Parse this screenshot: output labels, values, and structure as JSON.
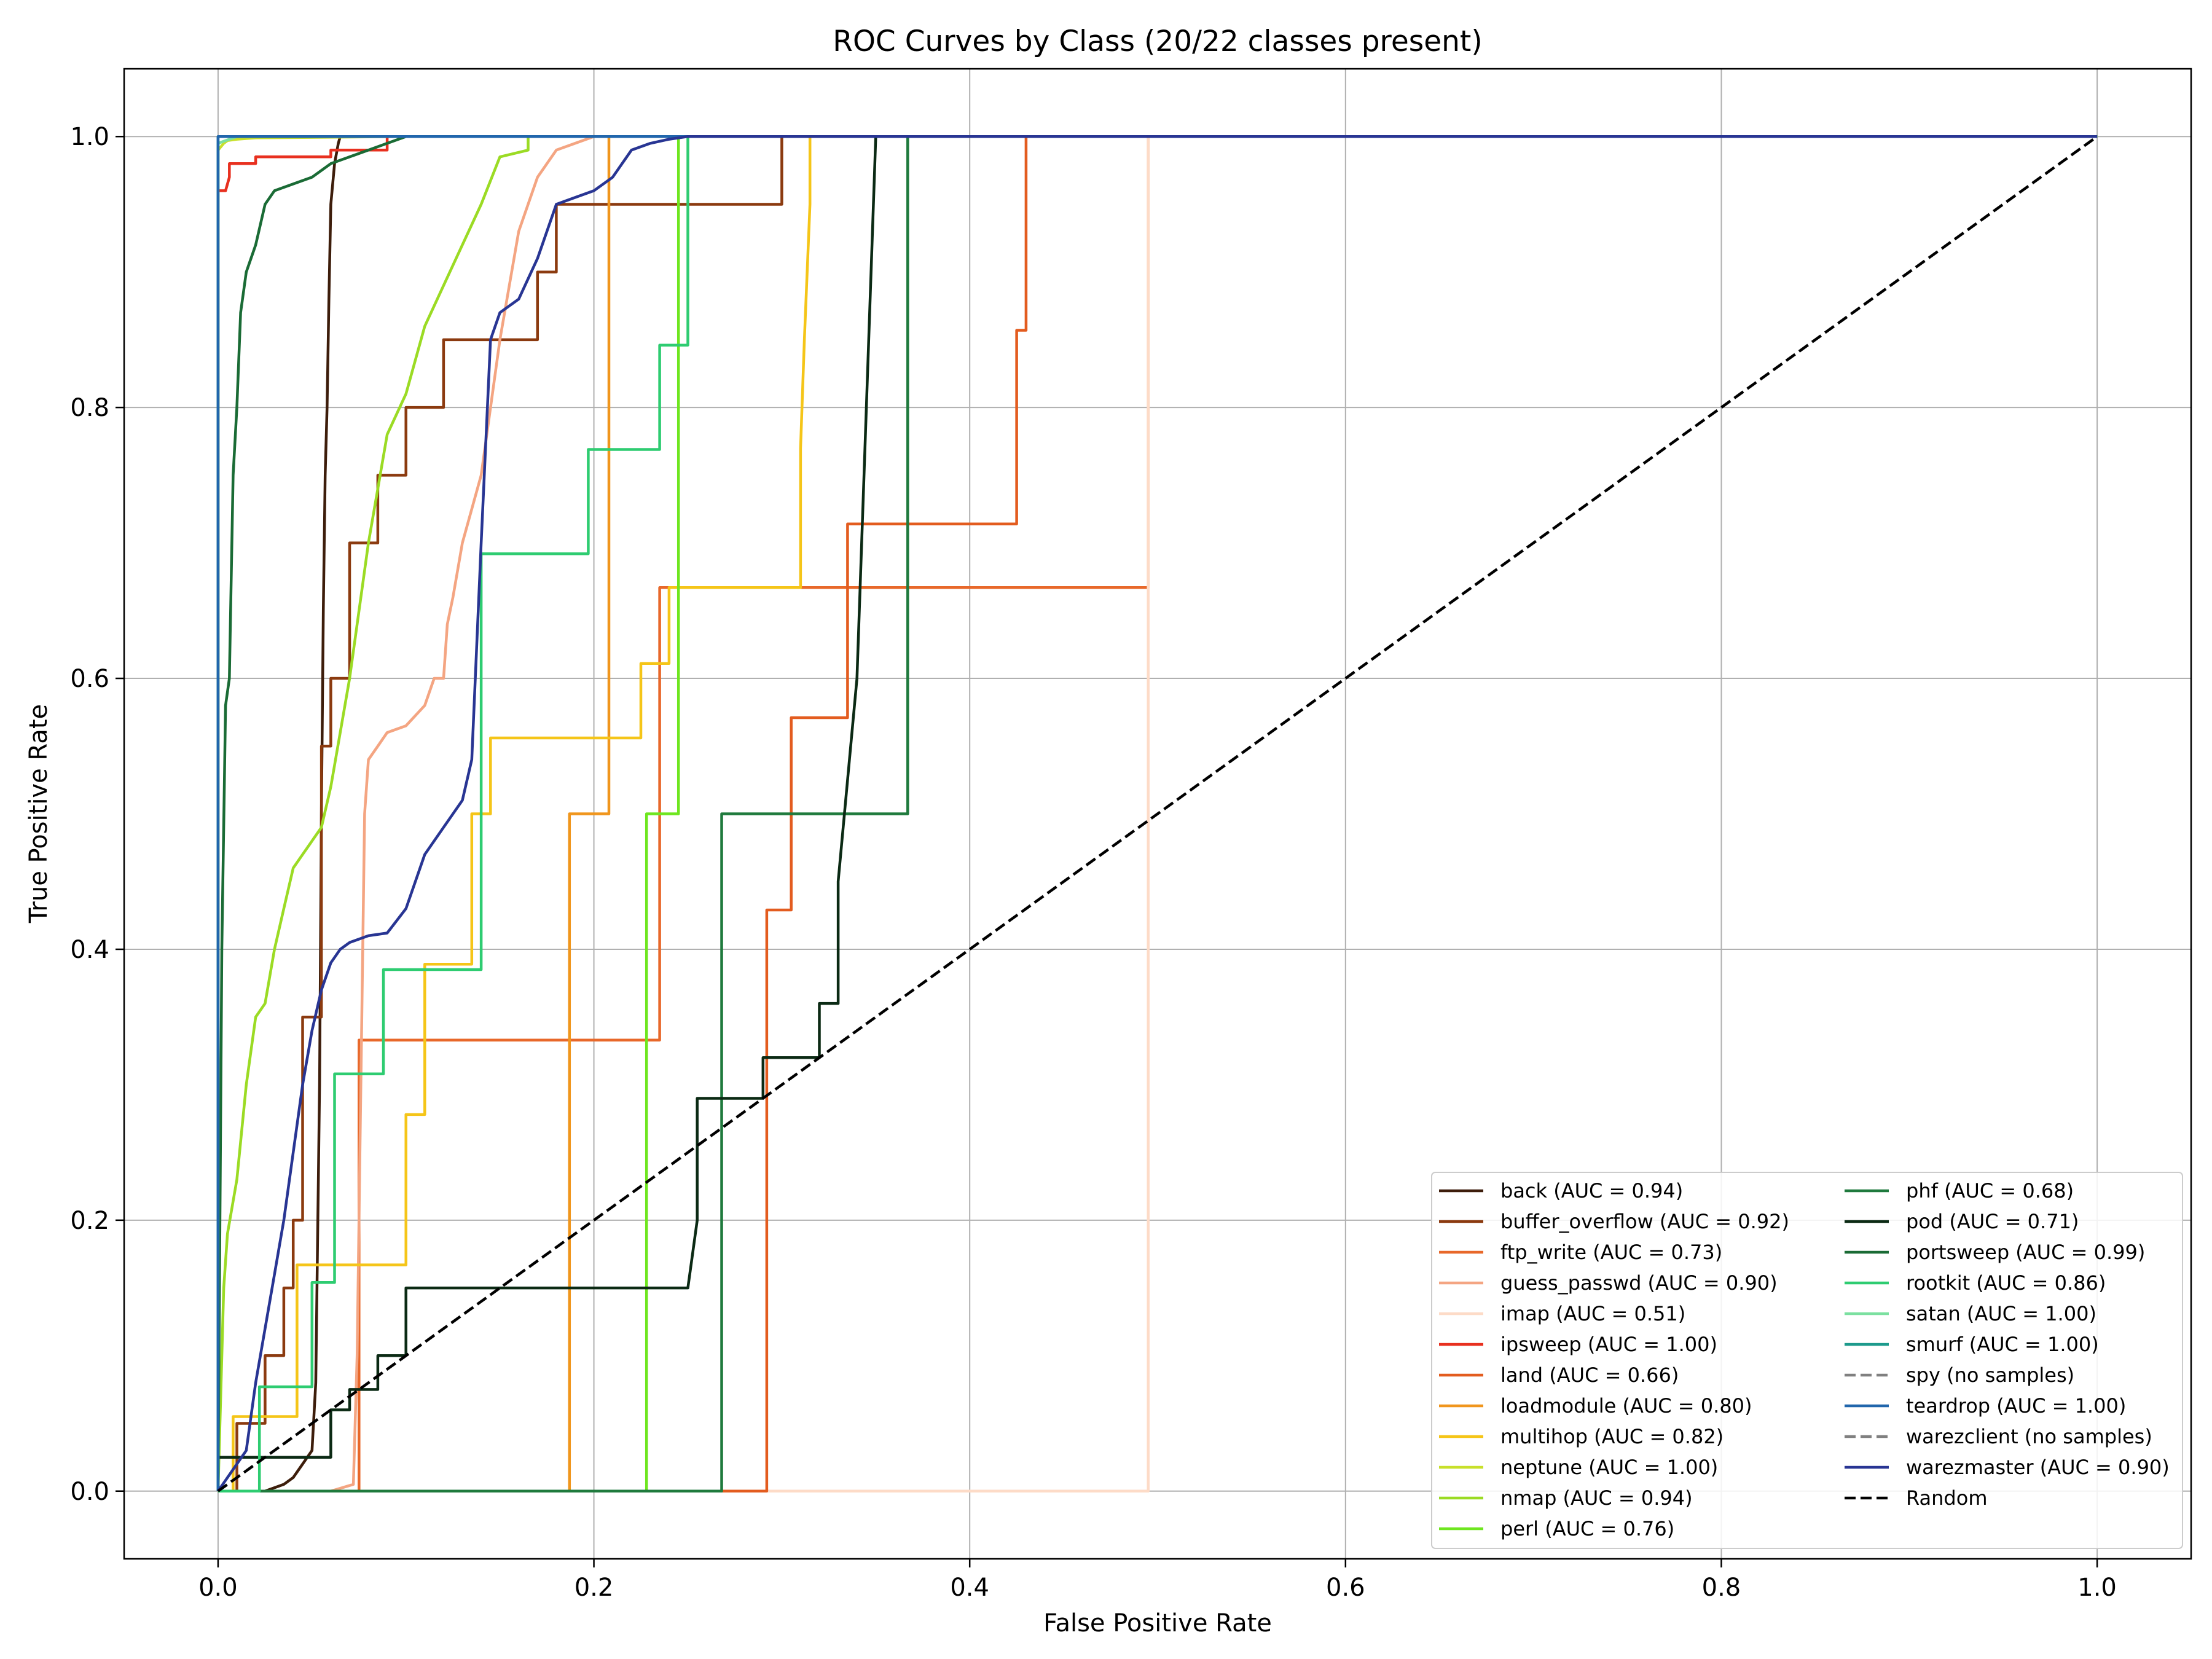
{
  "chart_data": {
    "type": "line",
    "title": "ROC Curves by Class (20/22 classes present)",
    "xlabel": "False Positive Rate",
    "ylabel": "True Positive Rate",
    "xlim": [
      -0.05,
      1.05
    ],
    "ylim": [
      -0.05,
      1.05
    ],
    "xticks": [
      0.0,
      0.2,
      0.4,
      0.6,
      0.8,
      1.0
    ],
    "yticks": [
      0.0,
      0.2,
      0.4,
      0.6,
      0.8,
      1.0
    ],
    "xtick_labels": [
      "0.0",
      "0.2",
      "0.4",
      "0.6",
      "0.8",
      "1.0"
    ],
    "ytick_labels": [
      "0.0",
      "0.2",
      "0.4",
      "0.6",
      "0.8",
      "1.0"
    ],
    "grid": true,
    "legend_position": "lower-right",
    "legend_columns": 2,
    "series": [
      {
        "name": "back",
        "label": "back (AUC = 0.94)",
        "color": "#3d1d0b",
        "dashed": false,
        "x": [
          0,
          0.025,
          0.035,
          0.04,
          0.045,
          0.05,
          0.052,
          0.054,
          0.055,
          0.056,
          0.057,
          0.058,
          0.059,
          0.06,
          0.062,
          0.064,
          0.065,
          1.0
        ],
        "y": [
          0,
          0,
          0.005,
          0.01,
          0.02,
          0.03,
          0.08,
          0.3,
          0.5,
          0.65,
          0.75,
          0.8,
          0.88,
          0.95,
          0.98,
          0.995,
          1.0,
          1.0
        ]
      },
      {
        "name": "buffer_overflow",
        "label": "buffer_overflow (AUC = 0.92)",
        "color": "#8b3a0f",
        "dashed": false,
        "x": [
          0,
          0.01,
          0.01,
          0.025,
          0.025,
          0.035,
          0.035,
          0.04,
          0.04,
          0.045,
          0.045,
          0.055,
          0.055,
          0.06,
          0.06,
          0.07,
          0.07,
          0.085,
          0.085,
          0.1,
          0.1,
          0.12,
          0.12,
          0.17,
          0.17,
          0.18,
          0.18,
          0.3,
          0.3,
          0.31,
          0.31,
          1.0
        ],
        "y": [
          0,
          0,
          0.05,
          0.05,
          0.1,
          0.1,
          0.15,
          0.15,
          0.2,
          0.2,
          0.35,
          0.35,
          0.55,
          0.55,
          0.6,
          0.6,
          0.7,
          0.7,
          0.75,
          0.75,
          0.8,
          0.8,
          0.85,
          0.85,
          0.9,
          0.9,
          0.95,
          0.95,
          1.0,
          1.0,
          1.0,
          1.0
        ]
      },
      {
        "name": "ftp_write",
        "label": "ftp_write (AUC = 0.73)",
        "color": "#e8682a",
        "dashed": false,
        "x": [
          0,
          0.075,
          0.075,
          0.235,
          0.235,
          0.495,
          0.495,
          1.0
        ],
        "y": [
          0,
          0,
          0.333,
          0.333,
          0.667,
          0.667,
          1.0,
          1.0
        ]
      },
      {
        "name": "guess_passwd",
        "label": "guess_passwd (AUC = 0.90)",
        "color": "#f4a582",
        "dashed": false,
        "x": [
          0,
          0.06,
          0.072,
          0.074,
          0.076,
          0.078,
          0.08,
          0.085,
          0.09,
          0.1,
          0.11,
          0.115,
          0.12,
          0.122,
          0.125,
          0.13,
          0.14,
          0.15,
          0.16,
          0.17,
          0.18,
          0.2,
          0.23,
          1.0
        ],
        "y": [
          0,
          0,
          0.005,
          0.1,
          0.3,
          0.5,
          0.54,
          0.55,
          0.56,
          0.565,
          0.58,
          0.6,
          0.6,
          0.64,
          0.66,
          0.7,
          0.75,
          0.85,
          0.93,
          0.97,
          0.99,
          1.0,
          1.0,
          1.0
        ]
      },
      {
        "name": "imap",
        "label": "imap (AUC = 0.51)",
        "color": "#fddbc7",
        "dashed": false,
        "x": [
          0,
          0.495,
          0.495,
          1.0
        ],
        "y": [
          0,
          0,
          1.0,
          1.0
        ]
      },
      {
        "name": "ipsweep",
        "label": "ipsweep (AUC = 1.00)",
        "color": "#e8301f",
        "dashed": false,
        "x": [
          0,
          0,
          0.004,
          0.006,
          0.006,
          0.02,
          0.02,
          0.06,
          0.06,
          0.09,
          0.09,
          1.0
        ],
        "y": [
          0,
          0.96,
          0.96,
          0.97,
          0.98,
          0.98,
          0.985,
          0.985,
          0.99,
          0.99,
          1.0,
          1.0
        ]
      },
      {
        "name": "land",
        "label": "land (AUC = 0.66)",
        "color": "#e35c1f",
        "dashed": false,
        "x": [
          0,
          0.292,
          0.292,
          0.305,
          0.305,
          0.335,
          0.335,
          0.355,
          0.355,
          0.425,
          0.425,
          0.43,
          0.43,
          1.0
        ],
        "y": [
          0,
          0,
          0.429,
          0.429,
          0.571,
          0.571,
          0.714,
          0.714,
          0.714,
          0.714,
          0.857,
          0.857,
          1.0,
          1.0
        ]
      },
      {
        "name": "loadmodule",
        "label": "loadmodule (AUC = 0.80)",
        "color": "#f0961d",
        "dashed": false,
        "x": [
          0,
          0.187,
          0.187,
          0.208,
          0.208,
          1.0
        ],
        "y": [
          0,
          0,
          0.5,
          0.5,
          1.0,
          1.0
        ]
      },
      {
        "name": "multihop",
        "label": "multihop (AUC = 0.82)",
        "color": "#f5c518",
        "dashed": false,
        "x": [
          0,
          0.008,
          0.008,
          0.042,
          0.042,
          0.1,
          0.1,
          0.11,
          0.11,
          0.135,
          0.135,
          0.145,
          0.145,
          0.225,
          0.225,
          0.24,
          0.24,
          0.31,
          0.31,
          0.312,
          0.315,
          0.315,
          1.0
        ],
        "y": [
          0,
          0,
          0.055,
          0.055,
          0.167,
          0.167,
          0.278,
          0.278,
          0.389,
          0.389,
          0.5,
          0.5,
          0.556,
          0.556,
          0.611,
          0.611,
          0.667,
          0.667,
          0.77,
          0.85,
          0.95,
          1.0,
          1.0
        ]
      },
      {
        "name": "neptune",
        "label": "neptune (AUC = 1.00)",
        "color": "#c8e02a",
        "dashed": false,
        "x": [
          0,
          0,
          0.003,
          0.005,
          0.01,
          0.02,
          0.1,
          1.0
        ],
        "y": [
          0,
          0.99,
          0.995,
          0.997,
          0.998,
          0.999,
          1.0,
          1.0
        ]
      },
      {
        "name": "nmap",
        "label": "nmap (AUC = 0.94)",
        "color": "#9bdb24",
        "dashed": false,
        "x": [
          0,
          0.003,
          0.005,
          0.01,
          0.015,
          0.02,
          0.025,
          0.03,
          0.035,
          0.04,
          0.045,
          0.05,
          0.055,
          0.06,
          0.07,
          0.075,
          0.08,
          0.085,
          0.09,
          0.1,
          0.11,
          0.12,
          0.13,
          0.14,
          0.15,
          0.165,
          0.165,
          1.0
        ],
        "y": [
          0,
          0.15,
          0.19,
          0.23,
          0.3,
          0.35,
          0.36,
          0.4,
          0.43,
          0.46,
          0.47,
          0.48,
          0.49,
          0.52,
          0.6,
          0.65,
          0.7,
          0.74,
          0.78,
          0.81,
          0.86,
          0.89,
          0.92,
          0.95,
          0.985,
          0.99,
          1.0,
          1.0
        ]
      },
      {
        "name": "perl",
        "label": "perl (AUC = 0.76)",
        "color": "#6ee61f",
        "dashed": false,
        "x": [
          0,
          0.228,
          0.228,
          0.245,
          0.245,
          1.0
        ],
        "y": [
          0,
          0,
          0.5,
          0.5,
          1.0,
          1.0
        ]
      },
      {
        "name": "phf",
        "label": "phf (AUC = 0.68)",
        "color": "#1f7a3d",
        "dashed": false,
        "x": [
          0,
          0.268,
          0.268,
          0.367,
          0.367,
          1.0
        ],
        "y": [
          0,
          0,
          0.5,
          0.5,
          1.0,
          1.0
        ]
      },
      {
        "name": "pod",
        "label": "pod (AUC = 0.71)",
        "color": "#0b2a14",
        "dashed": false,
        "x": [
          0,
          0,
          0.06,
          0.06,
          0.07,
          0.07,
          0.085,
          0.085,
          0.1,
          0.1,
          0.25,
          0.255,
          0.255,
          0.29,
          0.29,
          0.32,
          0.32,
          0.33,
          0.33,
          0.34,
          0.35,
          1.0
        ],
        "y": [
          0,
          0.025,
          0.025,
          0.06,
          0.06,
          0.075,
          0.075,
          0.1,
          0.1,
          0.15,
          0.15,
          0.2,
          0.29,
          0.29,
          0.32,
          0.32,
          0.36,
          0.36,
          0.45,
          0.6,
          1.0,
          1.0
        ]
      },
      {
        "name": "portsweep",
        "label": "portsweep (AUC = 0.99)",
        "color": "#1a6b35",
        "dashed": false,
        "x": [
          0,
          0.002,
          0.004,
          0.006,
          0.008,
          0.01,
          0.012,
          0.015,
          0.02,
          0.025,
          0.03,
          0.04,
          0.05,
          0.06,
          0.07,
          0.08,
          0.1,
          1.0
        ],
        "y": [
          0,
          0.4,
          0.58,
          0.6,
          0.75,
          0.8,
          0.87,
          0.9,
          0.92,
          0.95,
          0.96,
          0.965,
          0.97,
          0.98,
          0.985,
          0.99,
          1.0,
          1.0
        ]
      },
      {
        "name": "rootkit",
        "label": "rootkit (AUC = 0.86)",
        "color": "#2ecc71",
        "dashed": false,
        "x": [
          0,
          0.022,
          0.022,
          0.05,
          0.05,
          0.062,
          0.062,
          0.088,
          0.088,
          0.14,
          0.14,
          0.197,
          0.197,
          0.235,
          0.235,
          0.25,
          0.25,
          1.0
        ],
        "y": [
          0,
          0,
          0.077,
          0.077,
          0.154,
          0.154,
          0.308,
          0.308,
          0.385,
          0.385,
          0.692,
          0.692,
          0.769,
          0.769,
          0.846,
          0.846,
          1.0,
          1.0
        ]
      },
      {
        "name": "satan",
        "label": "satan (AUC = 1.00)",
        "color": "#7be0a0",
        "dashed": false,
        "x": [
          0,
          0,
          0.01,
          1.0
        ],
        "y": [
          0,
          0.995,
          1.0,
          1.0
        ]
      },
      {
        "name": "smurf",
        "label": "smurf (AUC = 1.00)",
        "color": "#1d9a8c",
        "dashed": false,
        "x": [
          0,
          0,
          1.0
        ],
        "y": [
          0,
          1.0,
          1.0
        ]
      },
      {
        "name": "spy",
        "label": "spy (no samples)",
        "color": "#808080",
        "dashed": true,
        "x": [],
        "y": []
      },
      {
        "name": "teardrop",
        "label": "teardrop (AUC = 1.00)",
        "color": "#2166ac",
        "dashed": false,
        "x": [
          0,
          0,
          1.0
        ],
        "y": [
          0,
          1.0,
          1.0
        ]
      },
      {
        "name": "warezclient",
        "label": "warezclient (no samples)",
        "color": "#808080",
        "dashed": true,
        "x": [],
        "y": []
      },
      {
        "name": "warezmaster",
        "label": "warezmaster (AUC = 0.90)",
        "color": "#283593",
        "dashed": false,
        "x": [
          0,
          0.015,
          0.02,
          0.025,
          0.03,
          0.035,
          0.04,
          0.045,
          0.05,
          0.055,
          0.06,
          0.065,
          0.07,
          0.08,
          0.09,
          0.1,
          0.11,
          0.12,
          0.13,
          0.135,
          0.14,
          0.145,
          0.15,
          0.16,
          0.17,
          0.18,
          0.19,
          0.2,
          0.21,
          0.22,
          0.23,
          0.24,
          0.25,
          0.26,
          1.0
        ],
        "y": [
          0,
          0.03,
          0.08,
          0.12,
          0.16,
          0.2,
          0.25,
          0.3,
          0.34,
          0.37,
          0.39,
          0.4,
          0.405,
          0.41,
          0.412,
          0.43,
          0.47,
          0.49,
          0.51,
          0.54,
          0.7,
          0.85,
          0.87,
          0.88,
          0.91,
          0.95,
          0.955,
          0.96,
          0.97,
          0.99,
          0.995,
          0.998,
          1.0,
          1.0,
          1.0
        ]
      },
      {
        "name": "Random",
        "label": "Random",
        "color": "#000000",
        "dashed": true,
        "x": [
          0,
          1.0
        ],
        "y": [
          0,
          1.0
        ]
      }
    ]
  }
}
